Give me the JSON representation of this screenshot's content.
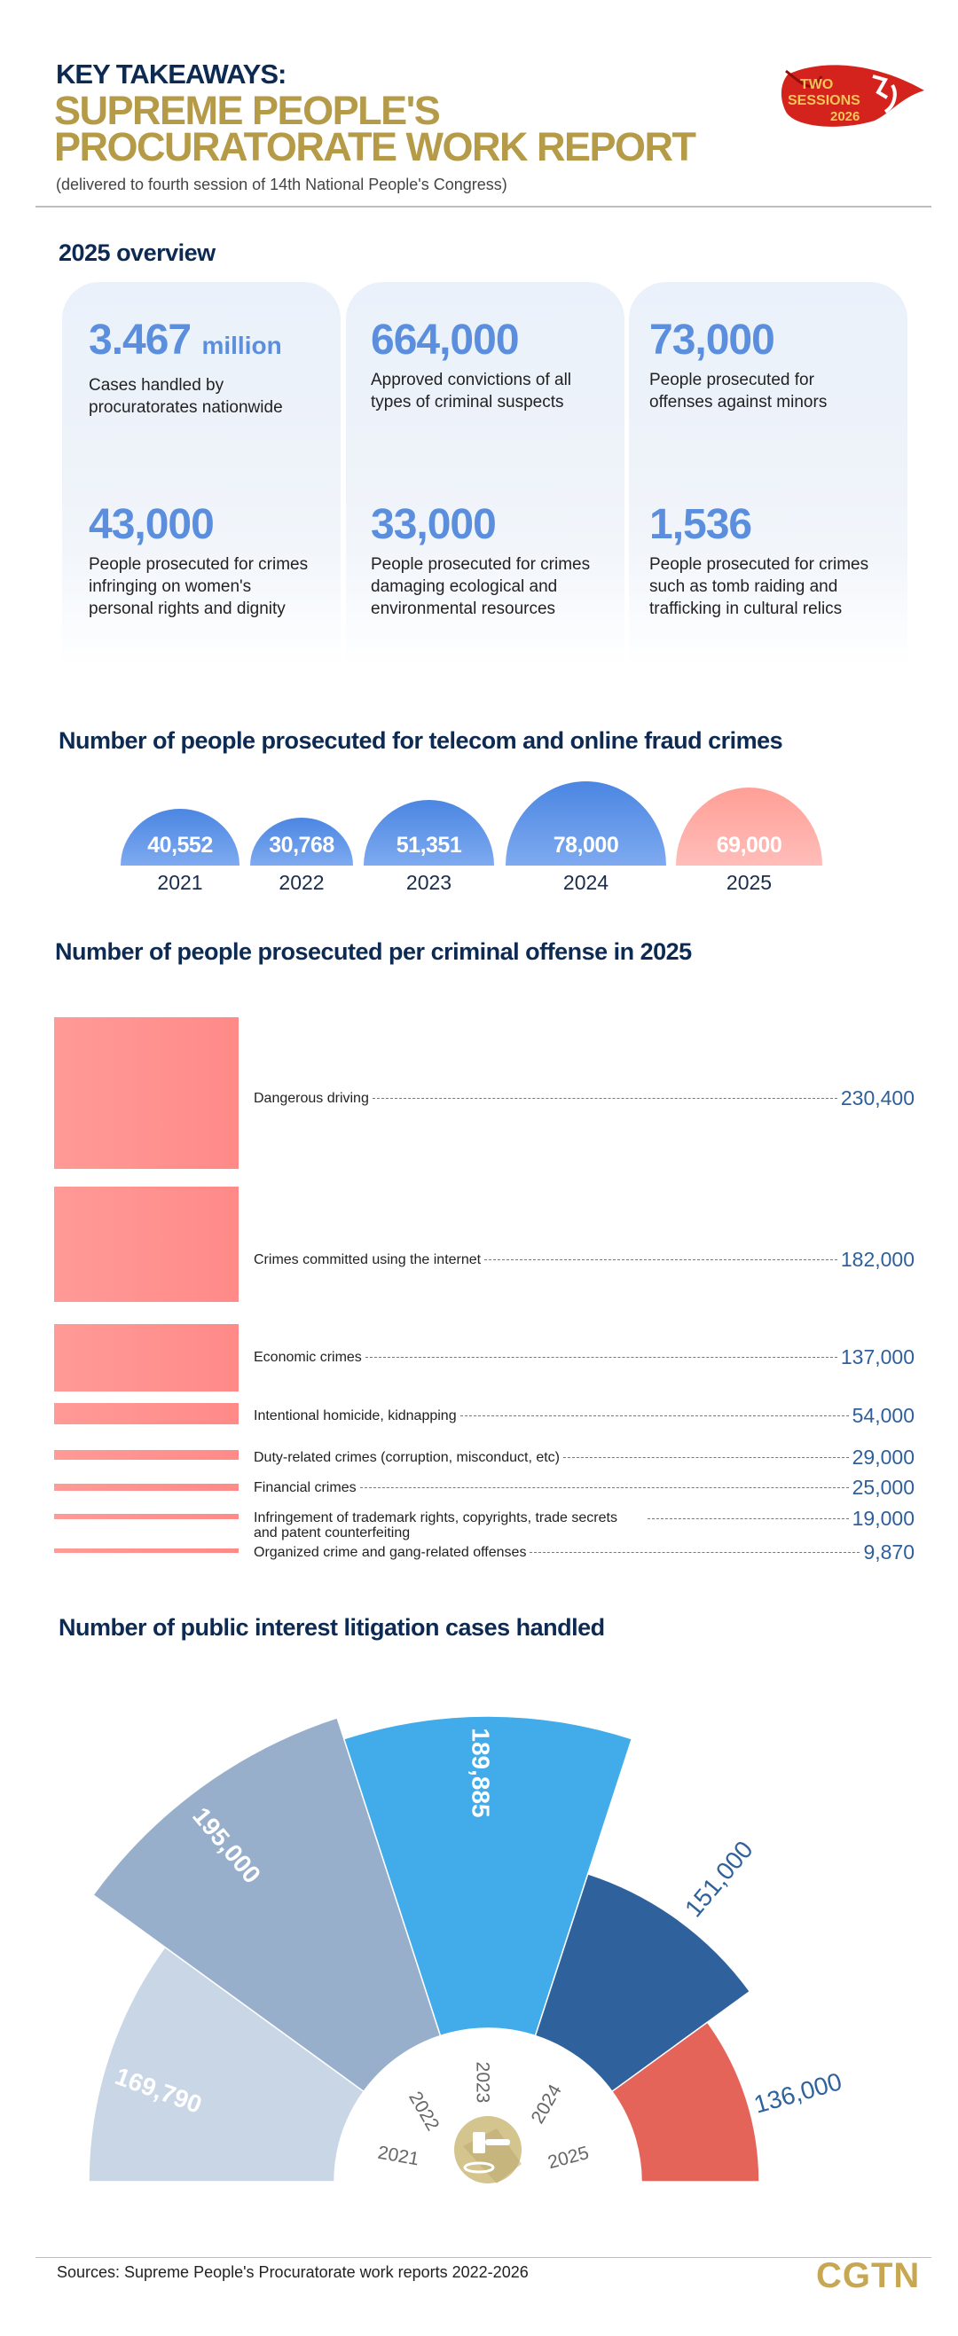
{
  "header": {
    "kicker": "KEY TAKEAWAYS:",
    "title_line1": "SUPREME PEOPLE'S",
    "title_line2": "PROCURATORATE WORK REPORT",
    "subtitle": "(delivered to fourth session of 14th National People's Congress)",
    "logo": {
      "line1": "TWO",
      "line2": "SESSIONS",
      "year": "2026",
      "color": "#d4231c"
    }
  },
  "overview": {
    "title": "2025 overview",
    "stats": [
      {
        "value": "3.467",
        "unit": "million",
        "desc": "Cases handled by procuratorates nationwide"
      },
      {
        "value": "664,000",
        "unit": "",
        "desc": "Approved convictions of all types of criminal suspects"
      },
      {
        "value": "73,000",
        "unit": "",
        "desc": "People prosecuted for offenses against minors"
      },
      {
        "value": "43,000",
        "unit": "",
        "desc": "People prosecuted for crimes infringing on women's personal rights and dignity"
      },
      {
        "value": "33,000",
        "unit": "",
        "desc": "People prosecuted for crimes damaging ecological and environmental resources"
      },
      {
        "value": "1,536",
        "unit": "",
        "desc": "People prosecuted for crimes such as tomb raiding and trafficking in cultural relics"
      }
    ],
    "accent": "#5b8fdd"
  },
  "chart_data": [
    {
      "type": "bar",
      "title": "Number of people prosecuted for telecom and online fraud crimes",
      "categories": [
        "2021",
        "2022",
        "2023",
        "2024",
        "2025"
      ],
      "values": [
        40552,
        30768,
        51351,
        78000,
        69000
      ],
      "labels": [
        "40,552",
        "30,768",
        "51,351",
        "78,000",
        "69,000"
      ],
      "colors": {
        "default": "#4b86e2",
        "highlight": "#ff9f97"
      },
      "highlight": "2025"
    },
    {
      "type": "bar",
      "title": "Number of people prosecuted per criminal offense in 2025",
      "categories": [
        "Dangerous driving",
        "Crimes committed using the internet",
        "Economic crimes",
        "Intentional homicide, kidnapping",
        "Duty-related crimes (corruption, misconduct, etc)",
        "Financial crimes",
        "Infringement of trademark rights, copyrights, trade secrets and patent counterfeiting",
        "Organized crime and gang-related offenses"
      ],
      "values": [
        230400,
        182000,
        137000,
        54000,
        29000,
        25000,
        19000,
        9870
      ],
      "labels": [
        "230,400",
        "182,000",
        "137,000",
        "54,000",
        "29,000",
        "25,000",
        "19,000",
        "9,870"
      ],
      "color": "#ff8f8c",
      "value_color": "#2f5f9a"
    },
    {
      "type": "pie",
      "title": "Number of public interest litigation cases handled",
      "categories": [
        "2021",
        "2022",
        "2023",
        "2024",
        "2025"
      ],
      "values": [
        169790,
        195000,
        189885,
        151000,
        136000
      ],
      "labels": [
        "169,790",
        "195,000",
        "189,885",
        "151,000",
        "136,000"
      ],
      "colors": [
        "#c9d6e6",
        "#98afcc",
        "#42abe9",
        "#2f619c",
        "#e5645a"
      ],
      "center_icon": "gavel-icon"
    }
  ],
  "footer": {
    "sources": "Sources: Supreme People's Procuratorate work reports 2022-2026",
    "brand": "CGTN"
  }
}
